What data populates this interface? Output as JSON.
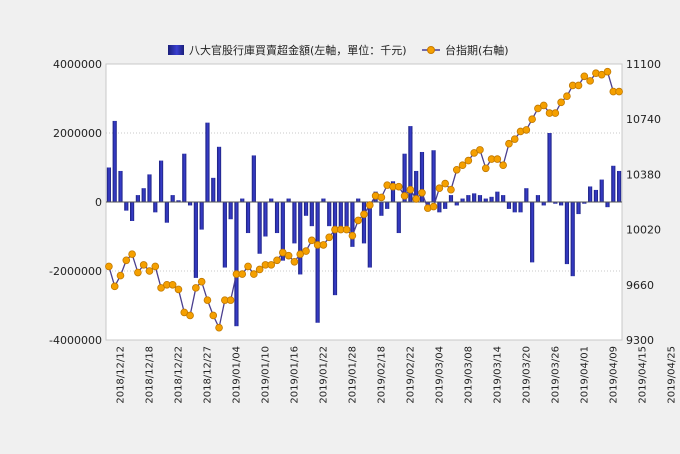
{
  "chart_data": {
    "type": "bar+line",
    "legend": {
      "bar_label": "八大官股行庫買賣超金額(左軸，單位：千元)",
      "line_label": "台指期(右軸)",
      "placement": "top"
    },
    "left_axis": {
      "min": -4000000,
      "max": 4000000,
      "ticks": [
        -4000000,
        -2000000,
        0,
        2000000,
        4000000
      ]
    },
    "right_axis": {
      "min": 9300,
      "max": 11100,
      "ticks": [
        9300,
        9660,
        10020,
        10380,
        10740,
        11100
      ]
    },
    "grid": "dotted horizontal",
    "x_tick_labels": [
      "2018/12/12",
      "2018/12/18",
      "2018/12/22",
      "2018/12/27",
      "2019/01/04",
      "2019/01/10",
      "2019/01/16",
      "2019/01/22",
      "2019/01/28",
      "2019/02/18",
      "2019/02/22",
      "2019/03/04",
      "2019/03/08",
      "2019/03/14",
      "2019/03/20",
      "2019/03/26",
      "2019/04/01",
      "2019/04/09",
      "2019/04/15",
      "2019/04/25"
    ],
    "x_tick_positions": [
      2,
      7,
      12,
      17,
      22,
      27,
      32,
      37,
      42,
      47,
      52,
      57,
      62,
      67,
      72,
      77,
      82,
      87,
      92,
      97
    ],
    "bar_values": [
      1000000,
      2350000,
      900000,
      -250000,
      -550000,
      200000,
      400000,
      800000,
      -300000,
      1200000,
      -600000,
      200000,
      50000,
      1400000,
      -100000,
      -2200000,
      -800000,
      2300000,
      700000,
      1600000,
      -1900000,
      -500000,
      -3600000,
      100000,
      -900000,
      1350000,
      -1500000,
      -1000000,
      100000,
      -900000,
      -1700000,
      100000,
      -1200000,
      -2100000,
      -400000,
      -700000,
      -3500000,
      100000,
      -700000,
      -2700000,
      -800000,
      -700000,
      -1300000,
      100000,
      -1200000,
      -1900000,
      300000,
      -400000,
      -200000,
      600000,
      -900000,
      1400000,
      2200000,
      900000,
      1450000,
      -200000,
      1500000,
      -300000,
      -200000,
      200000,
      -100000,
      100000,
      200000,
      250000,
      200000,
      100000,
      150000,
      300000,
      200000,
      -200000,
      -300000,
      -300000,
      400000,
      -1750000,
      200000,
      -100000,
      2000000,
      -50000,
      -100000,
      -1800000,
      -2150000,
      -350000,
      -50000,
      450000,
      350000,
      650000,
      -150000,
      1050000,
      900000
    ],
    "line_values": [
      9780,
      9650,
      9720,
      9820,
      9860,
      9740,
      9790,
      9750,
      9780,
      9640,
      9660,
      9660,
      9630,
      9480,
      9460,
      9640,
      9680,
      9560,
      9460,
      9380,
      9560,
      9560,
      9730,
      9730,
      9780,
      9730,
      9760,
      9790,
      9790,
      9820,
      9870,
      9850,
      9810,
      9860,
      9880,
      9950,
      9920,
      9920,
      9970,
      10020,
      10020,
      10020,
      9980,
      10080,
      10120,
      10180,
      10240,
      10230,
      10310,
      10300,
      10300,
      10240,
      10280,
      10220,
      10260,
      10160,
      10170,
      10290,
      10320,
      10280,
      10410,
      10440,
      10470,
      10520,
      10540,
      10420,
      10480,
      10480,
      10440,
      10580,
      10610,
      10660,
      10670,
      10740,
      10810,
      10830,
      10780,
      10780,
      10850,
      10890,
      10960,
      10960,
      11020,
      10990,
      11040,
      11030,
      11050,
      10920,
      10920
    ]
  }
}
